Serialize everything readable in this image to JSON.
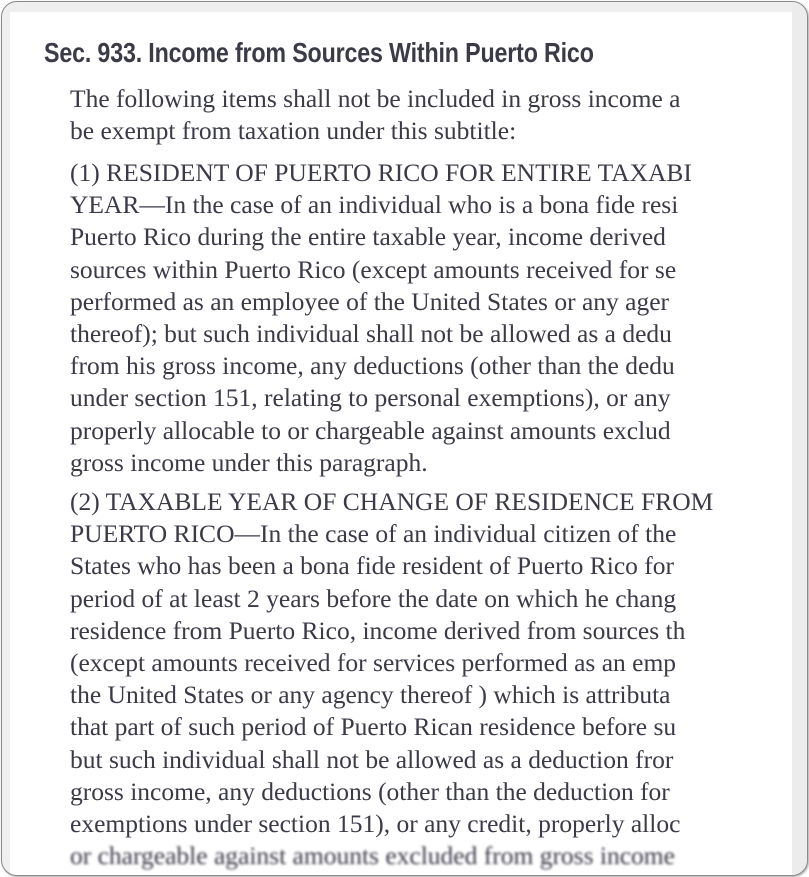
{
  "heading": "Sec. 933. Income from Sources Within Puerto Rico",
  "intro": [
    "The following items shall not be included in gross income a",
    "be exempt from taxation under this subtitle:"
  ],
  "paragraph1": [
    "(1) RESIDENT OF PUERTO RICO FOR ENTIRE TAXABI",
    "YEAR—In the case of an individual who is a bona fide resi",
    "Puerto Rico during the entire taxable year, income derived",
    "sources within Puerto Rico (except amounts received for se",
    "performed as an employee of the United States or any ager",
    "thereof); but such individual shall not be allowed as a dedu",
    "from his gross income, any deductions (other than the dedu",
    "under section 151, relating to personal exemptions), or any",
    "properly allocable to or chargeable against amounts exclud",
    "gross income under this paragraph."
  ],
  "paragraph2": [
    "(2) TAXABLE YEAR OF CHANGE OF RESIDENCE FROM",
    "PUERTO RICO—In the case of an individual citizen of the",
    "States who has been a bona fide resident of Puerto Rico for",
    "period of at least 2 years before the date on which he chang",
    "residence from Puerto Rico, income derived from sources th",
    "(except amounts received for services performed as an emp",
    "the United States or any agency thereof ) which is attributa",
    "that part of such period of Puerto Rican residence before su",
    "but such individual shall not be allowed as a deduction fror",
    "gross income, any deductions (other than the deduction for",
    "exemptions under section 151), or any credit, properly alloc",
    "or chargeable against amounts excluded from gross income"
  ]
}
